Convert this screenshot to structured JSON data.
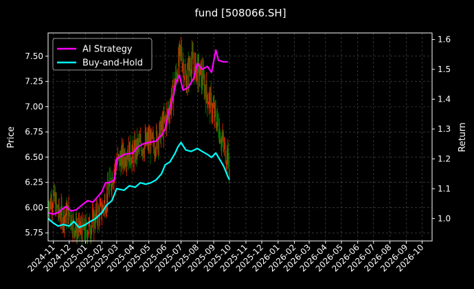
{
  "chart_data": {
    "type": "line",
    "title": "fund [508066.SH]",
    "ylabel_left": "Price",
    "ylabel_right": "Return",
    "grid": true,
    "legend_placement": "top-left",
    "x_ticks": [
      "2024-11",
      "2024-12",
      "2025-01",
      "2025-02",
      "2025-03",
      "2025-04",
      "2025-05",
      "2025-06",
      "2025-07",
      "2025-08",
      "2025-09",
      "2025-10",
      "2025-11",
      "2025-12",
      "2026-01",
      "2026-02",
      "2026-03",
      "2026-04",
      "2026-05",
      "2026-06",
      "2026-07",
      "2026-08",
      "2026-09",
      "2026-10"
    ],
    "xlim": [
      "2024-10-22",
      "2026-10-20"
    ],
    "y_left": {
      "lim": [
        5.67,
        7.73
      ],
      "ticks": [
        "5.75",
        "6.00",
        "6.25",
        "6.50",
        "6.75",
        "7.00",
        "7.25",
        "7.50"
      ]
    },
    "y_right": {
      "lim": [
        0.925,
        1.622
      ],
      "ticks": [
        "1.0",
        "1.1",
        "1.2",
        "1.3",
        "1.4",
        "1.5",
        "1.6"
      ]
    },
    "colors": {
      "ai": "#ff00ff",
      "bh": "#00ffff",
      "up": "#ff2a00",
      "down": "#008000",
      "grid": "#555555"
    },
    "series": [
      {
        "name": "AI Strategy",
        "axis": "right",
        "points": [
          [
            "2024-10-22",
            1.02
          ],
          [
            "2024-11-01",
            1.015
          ],
          [
            "2024-11-10",
            1.02
          ],
          [
            "2024-11-20",
            1.035
          ],
          [
            "2024-11-25",
            1.04
          ],
          [
            "2024-12-05",
            1.025
          ],
          [
            "2024-12-15",
            1.03
          ],
          [
            "2024-12-25",
            1.045
          ],
          [
            "2025-01-05",
            1.06
          ],
          [
            "2025-01-15",
            1.055
          ],
          [
            "2025-01-25",
            1.075
          ],
          [
            "2025-02-01",
            1.09
          ],
          [
            "2025-02-08",
            1.12
          ],
          [
            "2025-02-15",
            1.12
          ],
          [
            "2025-02-25",
            1.13
          ],
          [
            "2025-03-01",
            1.2
          ],
          [
            "2025-03-15",
            1.215
          ],
          [
            "2025-04-01",
            1.22
          ],
          [
            "2025-04-10",
            1.24
          ],
          [
            "2025-04-20",
            1.25
          ],
          [
            "2025-05-01",
            1.255
          ],
          [
            "2025-05-15",
            1.26
          ],
          [
            "2025-05-25",
            1.28
          ],
          [
            "2025-06-01",
            1.3
          ],
          [
            "2025-06-08",
            1.36
          ],
          [
            "2025-06-15",
            1.4
          ],
          [
            "2025-06-22",
            1.46
          ],
          [
            "2025-06-28",
            1.48
          ],
          [
            "2025-07-05",
            1.43
          ],
          [
            "2025-07-15",
            1.44
          ],
          [
            "2025-07-25",
            1.47
          ],
          [
            "2025-08-01",
            1.52
          ],
          [
            "2025-08-10",
            1.5
          ],
          [
            "2025-08-20",
            1.51
          ],
          [
            "2025-08-28",
            1.49
          ],
          [
            "2025-09-05",
            1.565
          ],
          [
            "2025-09-10",
            1.53
          ],
          [
            "2025-09-20",
            1.525
          ],
          [
            "2025-09-28",
            1.525
          ]
        ]
      },
      {
        "name": "Buy-and-Hold",
        "axis": "right",
        "points": [
          [
            "2024-10-22",
            1.0
          ],
          [
            "2024-11-01",
            0.985
          ],
          [
            "2024-11-10",
            0.975
          ],
          [
            "2024-11-20",
            0.98
          ],
          [
            "2024-12-01",
            0.975
          ],
          [
            "2024-12-10",
            0.99
          ],
          [
            "2024-12-20",
            0.97
          ],
          [
            "2025-01-01",
            0.98
          ],
          [
            "2025-01-10",
            0.99
          ],
          [
            "2025-01-20",
            1.0
          ],
          [
            "2025-02-01",
            1.02
          ],
          [
            "2025-02-10",
            1.045
          ],
          [
            "2025-02-20",
            1.06
          ],
          [
            "2025-03-01",
            1.1
          ],
          [
            "2025-03-15",
            1.095
          ],
          [
            "2025-03-25",
            1.11
          ],
          [
            "2025-04-05",
            1.105
          ],
          [
            "2025-04-15",
            1.12
          ],
          [
            "2025-04-25",
            1.115
          ],
          [
            "2025-05-05",
            1.12
          ],
          [
            "2025-05-15",
            1.13
          ],
          [
            "2025-05-25",
            1.15
          ],
          [
            "2025-06-01",
            1.18
          ],
          [
            "2025-06-10",
            1.19
          ],
          [
            "2025-06-20",
            1.22
          ],
          [
            "2025-06-25",
            1.24
          ],
          [
            "2025-07-01",
            1.255
          ],
          [
            "2025-07-10",
            1.23
          ],
          [
            "2025-07-20",
            1.225
          ],
          [
            "2025-08-01",
            1.235
          ],
          [
            "2025-08-10",
            1.225
          ],
          [
            "2025-08-20",
            1.215
          ],
          [
            "2025-08-28",
            1.205
          ],
          [
            "2025-09-05",
            1.22
          ],
          [
            "2025-09-15",
            1.19
          ],
          [
            "2025-09-20",
            1.175
          ],
          [
            "2025-09-28",
            1.14
          ],
          [
            "2025-10-01",
            1.13
          ]
        ]
      }
    ],
    "price_series": {
      "name": "Price",
      "axis": "left",
      "points": [
        [
          "2024-10-22",
          6.02
        ],
        [
          "2024-11-01",
          6.1
        ],
        [
          "2024-11-10",
          5.95
        ],
        [
          "2024-11-20",
          5.92
        ],
        [
          "2024-12-01",
          5.95
        ],
        [
          "2024-12-10",
          5.82
        ],
        [
          "2024-12-20",
          5.78
        ],
        [
          "2025-01-01",
          5.77
        ],
        [
          "2025-01-10",
          5.82
        ],
        [
          "2025-01-20",
          5.9
        ],
        [
          "2025-02-01",
          5.98
        ],
        [
          "2025-02-10",
          6.1
        ],
        [
          "2025-02-20",
          6.3
        ],
        [
          "2025-03-01",
          6.45
        ],
        [
          "2025-03-10",
          6.48
        ],
        [
          "2025-03-20",
          6.55
        ],
        [
          "2025-04-01",
          6.52
        ],
        [
          "2025-04-10",
          6.6
        ],
        [
          "2025-04-20",
          6.62
        ],
        [
          "2025-05-01",
          6.65
        ],
        [
          "2025-05-10",
          6.62
        ],
        [
          "2025-05-20",
          6.72
        ],
        [
          "2025-06-01",
          6.85
        ],
        [
          "2025-06-10",
          7.0
        ],
        [
          "2025-06-20",
          7.25
        ],
        [
          "2025-07-01",
          7.55
        ],
        [
          "2025-07-10",
          7.25
        ],
        [
          "2025-07-20",
          7.45
        ],
        [
          "2025-08-01",
          7.35
        ],
        [
          "2025-08-10",
          7.3
        ],
        [
          "2025-08-20",
          7.1
        ],
        [
          "2025-09-01",
          6.95
        ],
        [
          "2025-09-10",
          6.8
        ],
        [
          "2025-09-20",
          6.6
        ],
        [
          "2025-09-28",
          6.5
        ],
        [
          "2025-10-01",
          6.38
        ]
      ]
    }
  }
}
